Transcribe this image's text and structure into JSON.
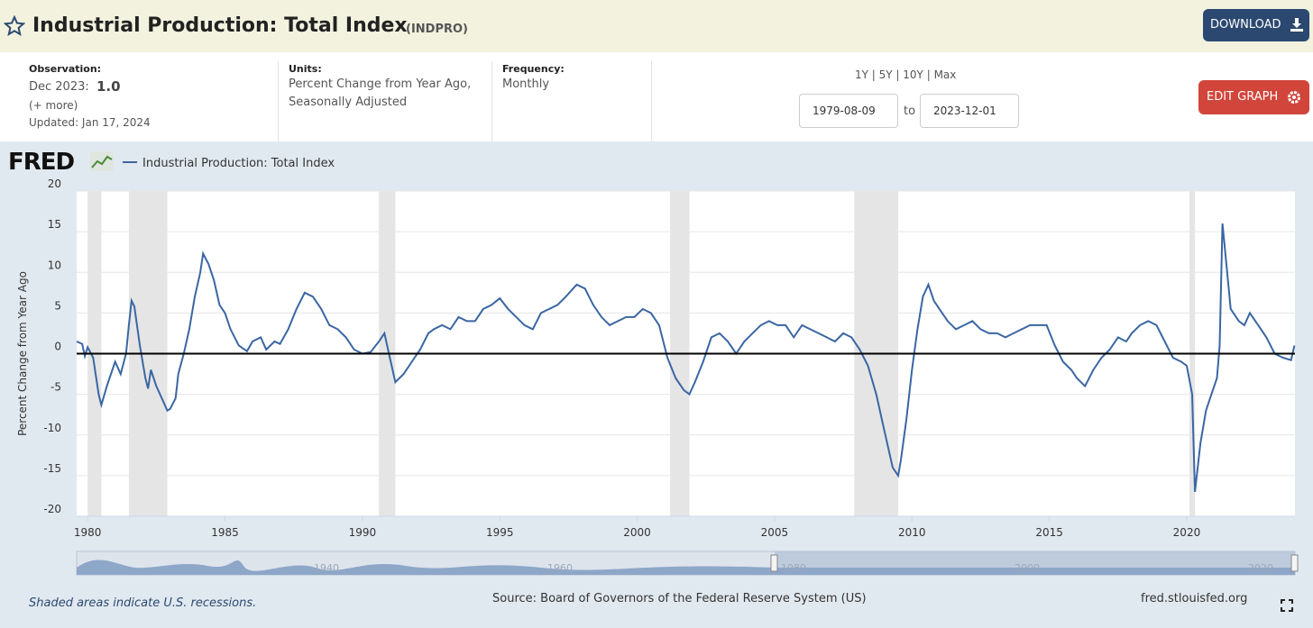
{
  "header": {
    "title": "Industrial Production: Total Index",
    "series_id": "(INDPRO)",
    "download": "DOWNLOAD"
  },
  "info": {
    "observation_label": "Observation:",
    "observation_date": "Dec 2023:",
    "observation_value": "1.0",
    "more": "(+ more)",
    "updated": "Updated: Jan 17, 2024",
    "units_label": "Units:",
    "units_lines": [
      "Percent Change from Year Ago,",
      "Seasonally Adjusted"
    ],
    "frequency_label": "Frequency:",
    "frequency": "Monthly",
    "ranges": [
      "1Y",
      "5Y",
      "10Y",
      "Max"
    ],
    "start_date": "1979-08-09",
    "to": "to",
    "end_date": "2023-12-01",
    "edit_graph": "EDIT GRAPH"
  },
  "logo": "FRED",
  "chart_data": {
    "type": "line",
    "ylabel": "Percent Change from Year Ago",
    "x": [
      1979.6,
      1979.8,
      1979.9,
      1980.0,
      1980.2,
      1980.4,
      1980.5,
      1980.7,
      1980.9,
      1981.0,
      1981.2,
      1981.4,
      1981.5,
      1981.6,
      1981.7,
      1981.9,
      1982.1,
      1982.2,
      1982.3,
      1982.5,
      1982.7,
      1982.9,
      1983.0,
      1983.2,
      1983.3,
      1983.5,
      1983.7,
      1983.9,
      1984.1,
      1984.2,
      1984.4,
      1984.6,
      1984.8,
      1985.0,
      1985.2,
      1985.5,
      1985.8,
      1986.0,
      1986.3,
      1986.5,
      1986.8,
      1987.0,
      1987.3,
      1987.6,
      1987.9,
      1988.2,
      1988.5,
      1988.8,
      1989.1,
      1989.4,
      1989.7,
      1990.0,
      1990.3,
      1990.6,
      1990.8,
      1991.0,
      1991.2,
      1991.5,
      1991.8,
      1992.1,
      1992.4,
      1992.6,
      1992.9,
      1993.2,
      1993.5,
      1993.8,
      1994.1,
      1994.4,
      1994.7,
      1995.0,
      1995.3,
      1995.6,
      1995.9,
      1996.2,
      1996.5,
      1996.8,
      1997.1,
      1997.4,
      1997.8,
      1998.1,
      1998.4,
      1998.7,
      1999.0,
      1999.3,
      1999.6,
      1999.9,
      2000.2,
      2000.5,
      2000.8,
      2001.1,
      2001.4,
      2001.7,
      2001.9,
      2002.1,
      2002.4,
      2002.7,
      2003.0,
      2003.3,
      2003.6,
      2003.9,
      2004.2,
      2004.5,
      2004.8,
      2005.1,
      2005.4,
      2005.7,
      2006.0,
      2006.3,
      2006.6,
      2006.9,
      2007.2,
      2007.5,
      2007.8,
      2008.1,
      2008.4,
      2008.7,
      2008.9,
      2009.1,
      2009.3,
      2009.5,
      2009.6,
      2009.8,
      2010.0,
      2010.2,
      2010.4,
      2010.6,
      2010.8,
      2011.0,
      2011.3,
      2011.6,
      2011.9,
      2012.2,
      2012.5,
      2012.8,
      2013.1,
      2013.4,
      2013.7,
      2014.0,
      2014.3,
      2014.6,
      2014.9,
      2015.2,
      2015.5,
      2015.8,
      2016.0,
      2016.3,
      2016.6,
      2016.9,
      2017.2,
      2017.5,
      2017.8,
      2018.0,
      2018.3,
      2018.6,
      2018.9,
      2019.2,
      2019.5,
      2019.8,
      2020.0,
      2020.2,
      2020.3,
      2020.5,
      2020.7,
      2020.9,
      2021.1,
      2021.2,
      2021.3,
      2021.5,
      2021.6,
      2021.9,
      2022.1,
      2022.3,
      2022.6,
      2022.9,
      2023.2,
      2023.5,
      2023.8,
      2023.92
    ],
    "series": [
      {
        "name": "Industrial Production: Total Index",
        "color": "#3a66a3",
        "values": [
          1.5,
          1.2,
          -0.3,
          0.8,
          -0.5,
          -5,
          -6.3,
          -4,
          -2,
          -1,
          -2.5,
          0,
          3.5,
          6.5,
          5.8,
          1,
          -3,
          -4.3,
          -2,
          -4,
          -5.5,
          -7,
          -6.8,
          -5.5,
          -2.5,
          0,
          3,
          7,
          10,
          12.3,
          11,
          9,
          6,
          5,
          3,
          1,
          0.3,
          1.5,
          2,
          0.5,
          1.5,
          1.2,
          3,
          5.5,
          7.5,
          7,
          5.5,
          3.5,
          3,
          2,
          0.5,
          0,
          0.2,
          1.5,
          2.5,
          -0.5,
          -3.5,
          -2.5,
          -1,
          0.5,
          2.5,
          3,
          3.5,
          3,
          4.5,
          4,
          4,
          5.5,
          6,
          6.8,
          5.5,
          4.5,
          3.5,
          3,
          5,
          5.5,
          6,
          7,
          8.5,
          8,
          6,
          4.5,
          3.5,
          4,
          4.5,
          4.5,
          5.5,
          5,
          3.5,
          -0.5,
          -3,
          -4.5,
          -5,
          -3.5,
          -1,
          2,
          2.5,
          1.5,
          0,
          1.5,
          2.5,
          3.5,
          4,
          3.5,
          3.5,
          2,
          3.5,
          3,
          2.5,
          2,
          1.5,
          2.5,
          2,
          0.5,
          -1.5,
          -5,
          -8,
          -11,
          -14,
          -15,
          -13,
          -8,
          -2,
          3,
          7,
          8.5,
          6.5,
          5.5,
          4,
          3,
          3.5,
          4,
          3,
          2.5,
          2.5,
          2,
          2.5,
          3,
          3.5,
          3.5,
          3.5,
          1,
          -1,
          -2,
          -3,
          -4,
          -2,
          -0.5,
          0.5,
          2,
          1.5,
          2.5,
          3.5,
          4,
          3.5,
          1.5,
          -0.5,
          -1,
          -1.5,
          -5,
          -17,
          -11,
          -7,
          -5,
          -3,
          1,
          16,
          9,
          5.5,
          4,
          3.5,
          5,
          3.5,
          2,
          0,
          -0.5,
          -0.8,
          1.0
        ]
      }
    ],
    "recessions": [
      [
        1980.0,
        1980.5
      ],
      [
        1981.5,
        1982.9
      ],
      [
        1990.6,
        1991.2
      ],
      [
        2001.2,
        2001.9
      ],
      [
        2007.9,
        2009.5
      ],
      [
        2020.1,
        2020.3
      ]
    ],
    "xlim": [
      1979.6,
      2023.94
    ],
    "xticks": [
      1980,
      1985,
      1990,
      1995,
      2000,
      2005,
      2010,
      2015,
      2020
    ],
    "ylim": [
      -20,
      20
    ],
    "yticks": [
      20,
      15,
      10,
      5,
      0,
      -5,
      -10,
      -15,
      -20
    ],
    "grid": true,
    "zero_line": true
  },
  "navigator_labels": [
    "1940",
    "1960",
    "1980",
    "2000",
    "2020"
  ],
  "footer": {
    "note": "Shaded areas indicate U.S. recessions.",
    "source": "Source: Board of Governors of the Federal Reserve System (US)",
    "url": "fred.stlouisfed.org"
  }
}
